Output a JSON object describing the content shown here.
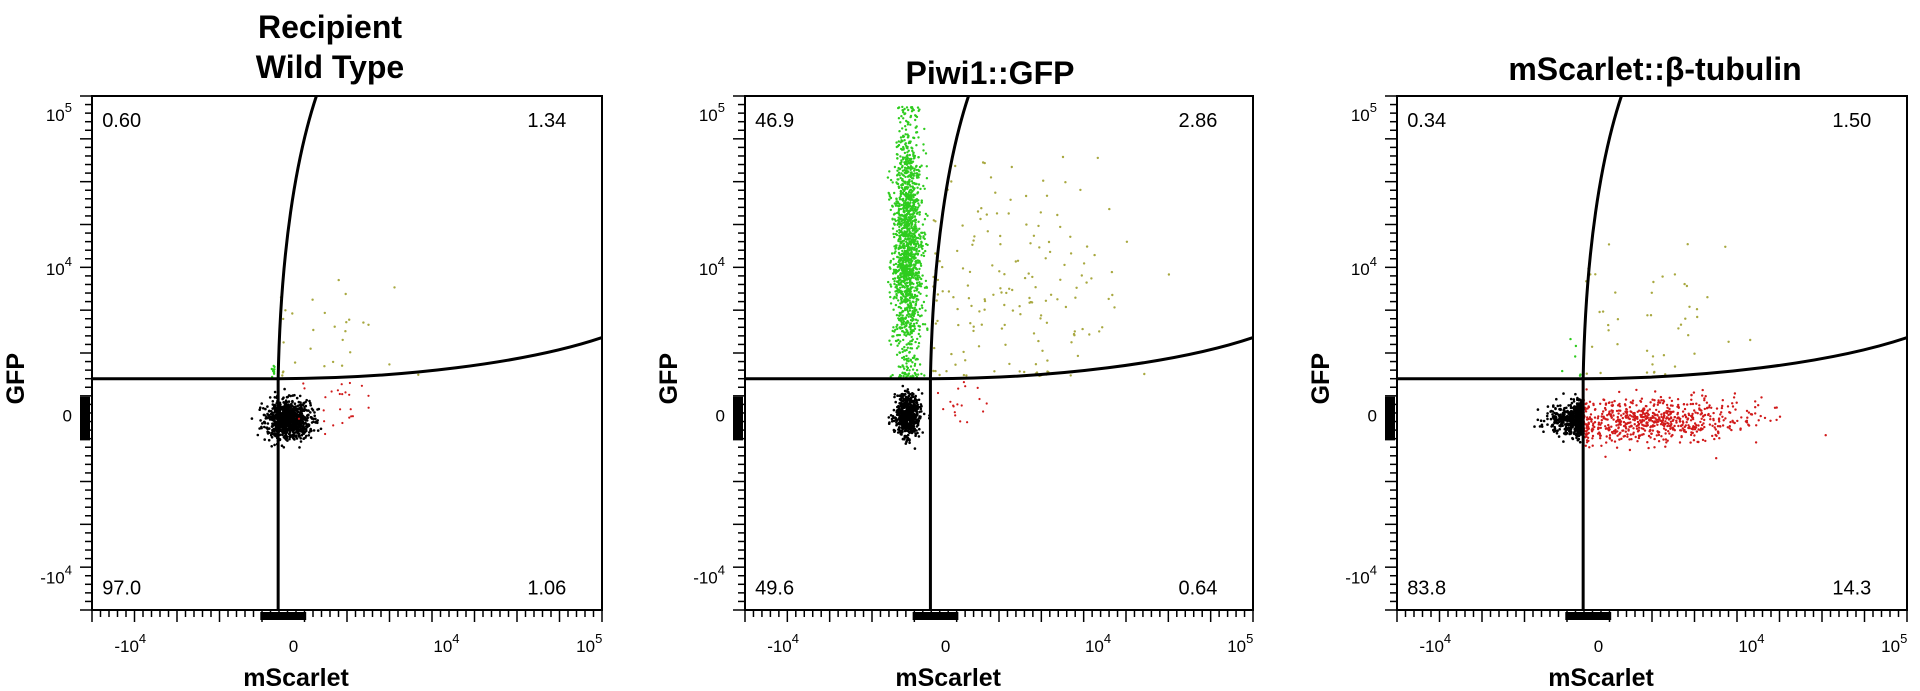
{
  "chart_data": [
    {
      "type": "scatter",
      "title": "Recipient\nWild Type",
      "xlabel": "mScarlet",
      "ylabel": "GFP",
      "x_ticks": [
        "-10^4",
        "0",
        "10^4",
        "10^5"
      ],
      "y_ticks": [
        "10^5",
        "10^4",
        "0",
        "-10^4"
      ],
      "quadrants": {
        "upper_left": "0.60",
        "upper_right": "1.34",
        "lower_left": "97.0",
        "lower_right": "1.06"
      },
      "colors": {
        "double_negative": "#000000",
        "gfp_positive": "#2ecc1e",
        "mscarlet_positive": "#d11a1a",
        "double_positive": "#a8a840"
      }
    },
    {
      "type": "scatter",
      "title": "Piwi1::GFP",
      "xlabel": "mScarlet",
      "ylabel": "GFP",
      "x_ticks": [
        "-10^4",
        "0",
        "10^4",
        "10^5"
      ],
      "y_ticks": [
        "10^5",
        "10^4",
        "0",
        "-10^4"
      ],
      "quadrants": {
        "upper_left": "46.9",
        "upper_right": "2.86",
        "lower_left": "49.6",
        "lower_right": "0.64"
      },
      "colors": {
        "double_negative": "#000000",
        "gfp_positive": "#2ecc1e",
        "mscarlet_positive": "#d11a1a",
        "double_positive": "#a8a840"
      }
    },
    {
      "type": "scatter",
      "title": "mScarlet::β-tubulin",
      "xlabel": "mScarlet",
      "ylabel": "GFP",
      "x_ticks": [
        "-10^4",
        "0",
        "10^4",
        "10^5"
      ],
      "y_ticks": [
        "10^5",
        "10^4",
        "0",
        "-10^4"
      ],
      "quadrants": {
        "upper_left": "0.34",
        "upper_right": "1.50",
        "lower_left": "83.8",
        "lower_right": "14.3"
      },
      "colors": {
        "double_negative": "#000000",
        "gfp_positive": "#2ecc1e",
        "mscarlet_positive": "#d11a1a",
        "double_positive": "#a8a840"
      }
    }
  ]
}
